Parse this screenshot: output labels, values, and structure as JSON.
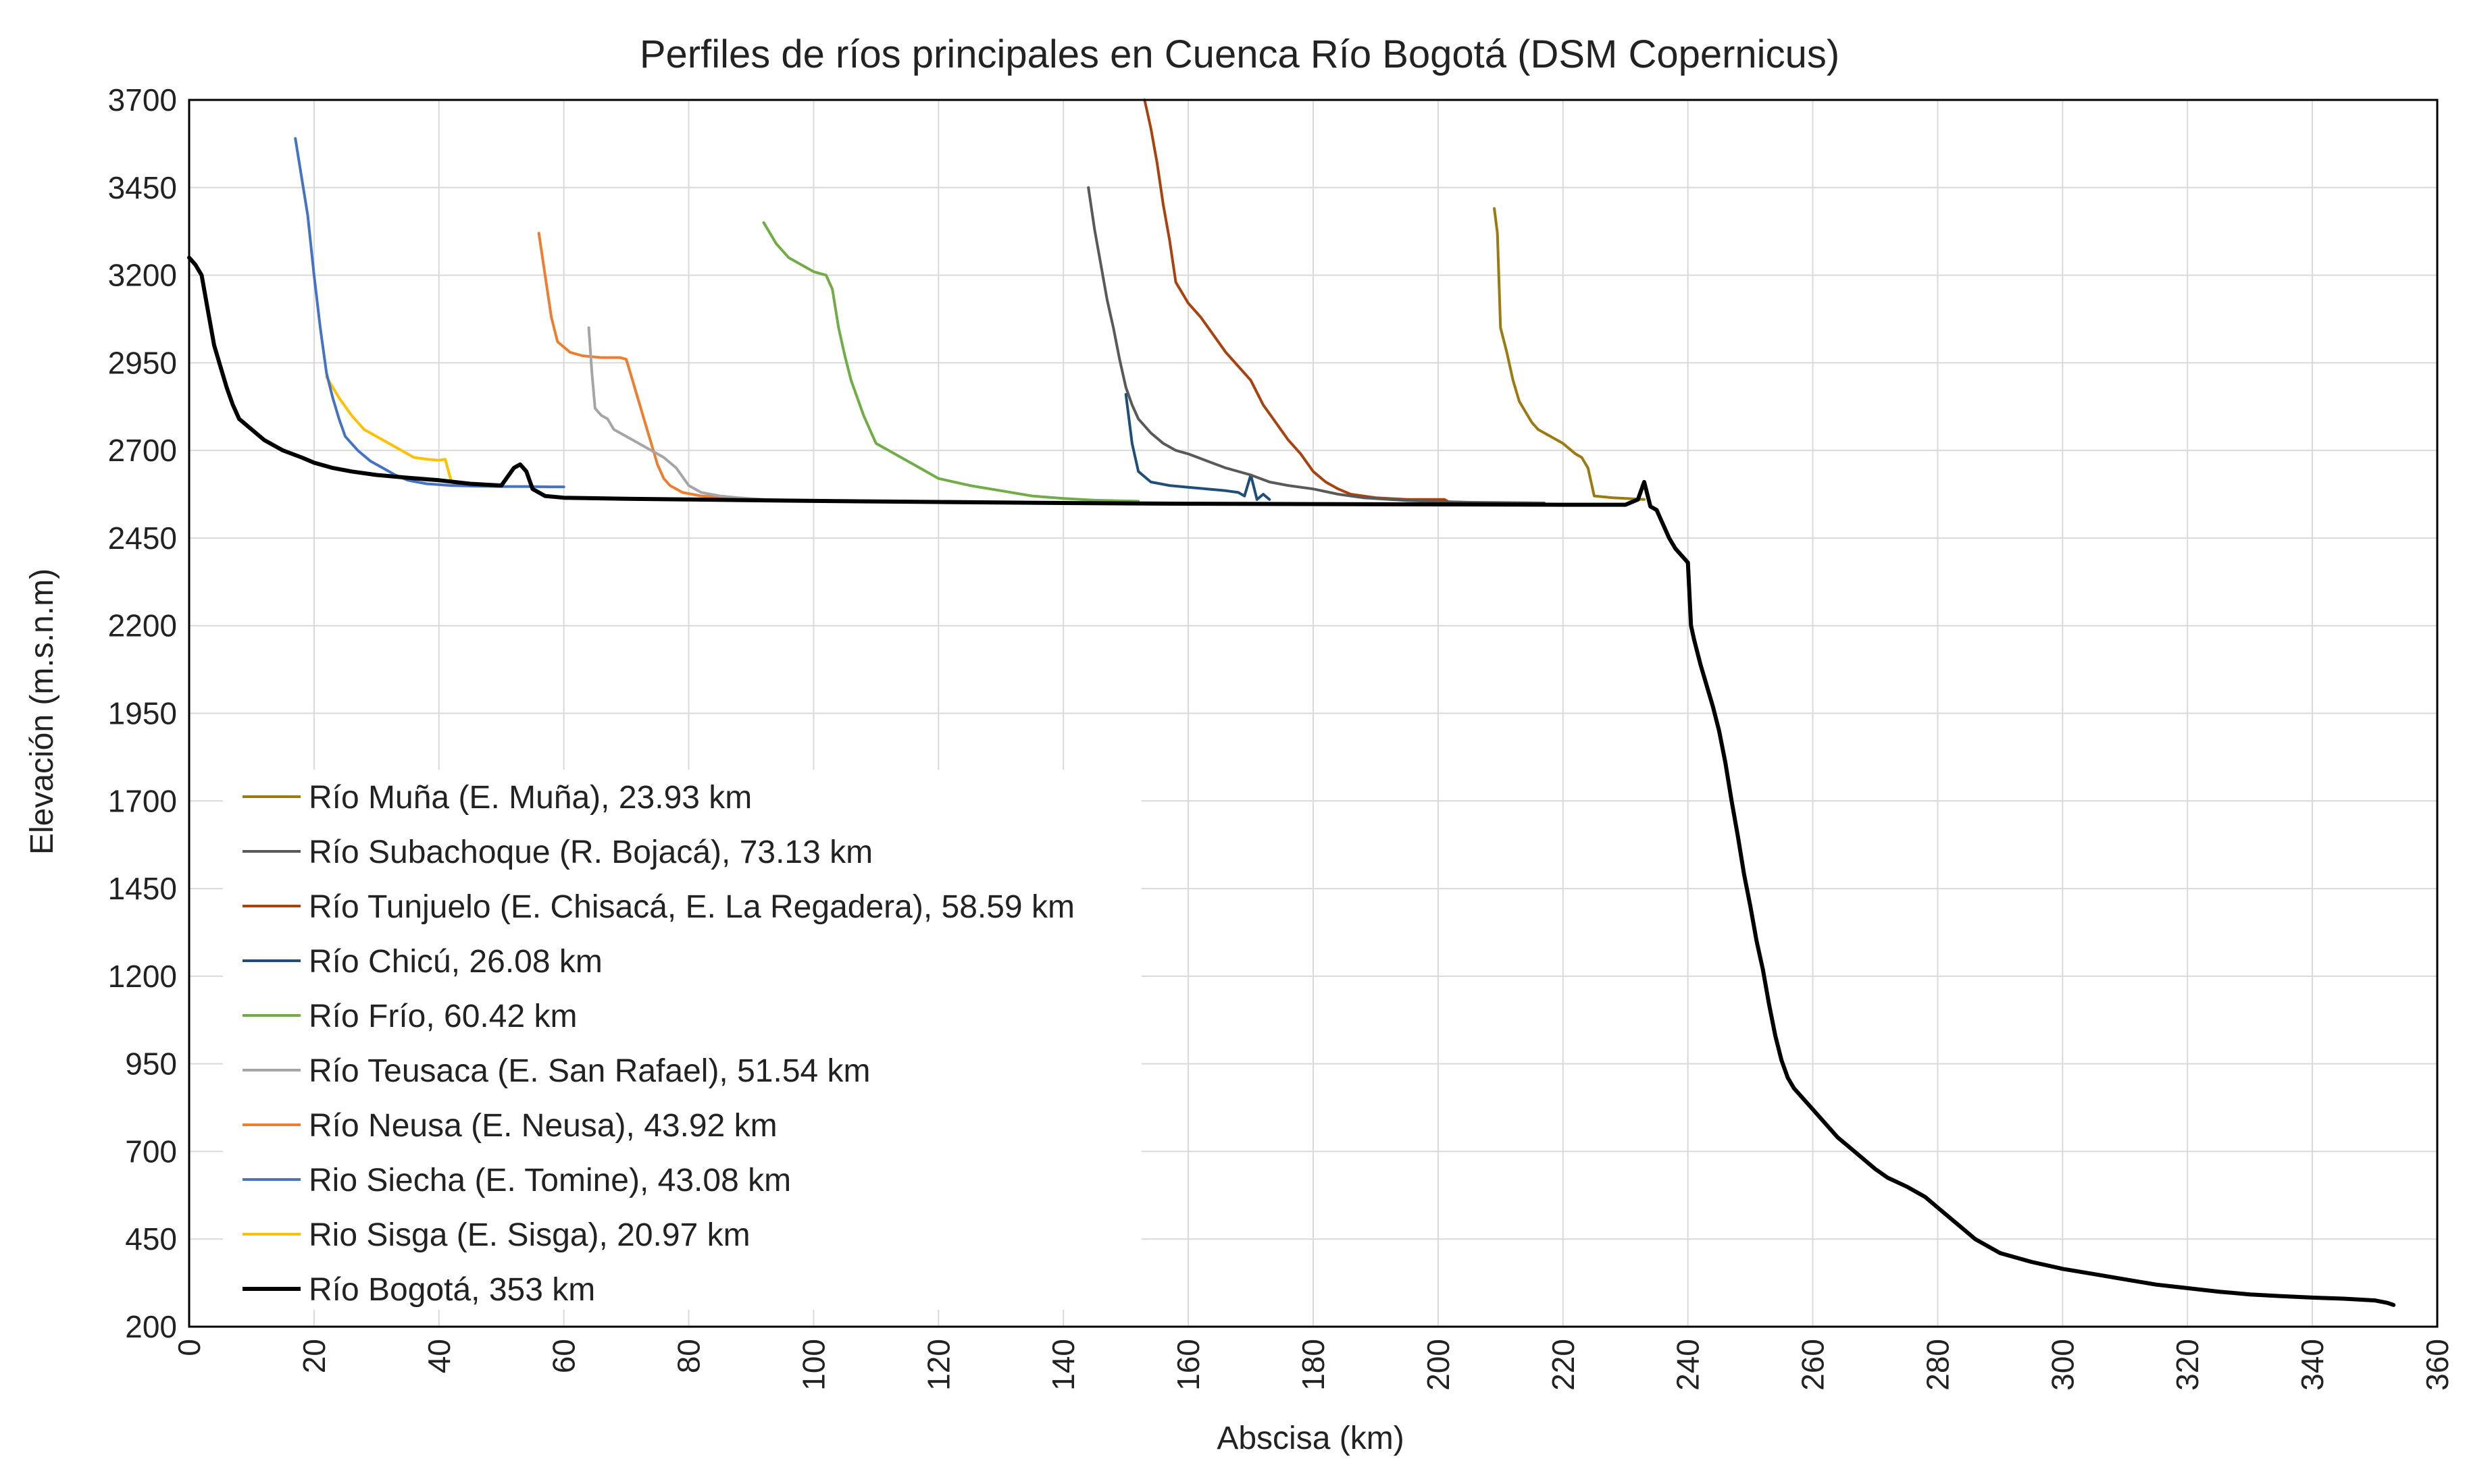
{
  "chart_data": {
    "type": "line",
    "title": "Perfiles de ríos principales en Cuenca Río Bogotá (DSM Copernicus)",
    "xlabel": "Abscisa (km)",
    "ylabel": "Elevación (m.s.n.m)",
    "xlim": [
      0,
      360
    ],
    "ylim": [
      200,
      3700
    ],
    "xticks": [
      0,
      20,
      40,
      60,
      80,
      100,
      120,
      140,
      160,
      180,
      200,
      220,
      240,
      260,
      280,
      300,
      320,
      340,
      360
    ],
    "yticks": [
      200,
      450,
      700,
      950,
      1200,
      1450,
      1700,
      1950,
      2200,
      2450,
      2700,
      2950,
      3200,
      3450,
      3700
    ],
    "grid": true,
    "legend_position": "lower-left",
    "series": [
      {
        "name": "Río Muña (E. Muña), 23.93 km",
        "color": "#9C7A12",
        "points": [
          [
            209,
            3390
          ],
          [
            209.5,
            3320
          ],
          [
            210,
            3050
          ],
          [
            211,
            2980
          ],
          [
            212,
            2900
          ],
          [
            213,
            2840
          ],
          [
            214,
            2810
          ],
          [
            215,
            2780
          ],
          [
            216,
            2760
          ],
          [
            218,
            2740
          ],
          [
            220,
            2720
          ],
          [
            222,
            2690
          ],
          [
            223,
            2680
          ],
          [
            224,
            2650
          ],
          [
            225,
            2570
          ],
          [
            228,
            2565
          ],
          [
            233,
            2560
          ]
        ]
      },
      {
        "name": "Río Subachoque (R. Bojacá), 73.13 km",
        "color": "#595959",
        "points": [
          [
            144,
            3450
          ],
          [
            145,
            3330
          ],
          [
            146,
            3230
          ],
          [
            147,
            3130
          ],
          [
            148,
            3050
          ],
          [
            149,
            2960
          ],
          [
            150,
            2880
          ],
          [
            151,
            2830
          ],
          [
            152,
            2790
          ],
          [
            154,
            2750
          ],
          [
            156,
            2720
          ],
          [
            158,
            2700
          ],
          [
            160,
            2690
          ],
          [
            163,
            2670
          ],
          [
            166,
            2650
          ],
          [
            170,
            2630
          ],
          [
            173,
            2610
          ],
          [
            176,
            2600
          ],
          [
            180,
            2590
          ],
          [
            184,
            2575
          ],
          [
            188,
            2565
          ],
          [
            195,
            2557
          ],
          [
            205,
            2552
          ],
          [
            217,
            2550
          ]
        ]
      },
      {
        "name": "Río Tunjuelo (E. Chisacá, E. La Regadera), 58.59 km",
        "color": "#A8430F",
        "points": [
          [
            153,
            3700
          ],
          [
            154,
            3620
          ],
          [
            155,
            3520
          ],
          [
            156,
            3400
          ],
          [
            157,
            3300
          ],
          [
            158,
            3180
          ],
          [
            160,
            3120
          ],
          [
            162,
            3080
          ],
          [
            164,
            3030
          ],
          [
            166,
            2980
          ],
          [
            168,
            2940
          ],
          [
            170,
            2900
          ],
          [
            172,
            2830
          ],
          [
            174,
            2780
          ],
          [
            176,
            2730
          ],
          [
            178,
            2690
          ],
          [
            180,
            2640
          ],
          [
            182,
            2610
          ],
          [
            184,
            2590
          ],
          [
            186,
            2575
          ],
          [
            190,
            2565
          ],
          [
            195,
            2560
          ],
          [
            201,
            2560
          ],
          [
            202,
            2550
          ]
        ]
      },
      {
        "name": "Río Chicú, 26.08 km",
        "color": "#1F4E79",
        "points": [
          [
            150,
            2860
          ],
          [
            151,
            2720
          ],
          [
            152,
            2640
          ],
          [
            154,
            2610
          ],
          [
            157,
            2600
          ],
          [
            160,
            2595
          ],
          [
            163,
            2590
          ],
          [
            166,
            2585
          ],
          [
            168,
            2580
          ],
          [
            169,
            2570
          ],
          [
            170,
            2630
          ],
          [
            171,
            2560
          ],
          [
            172,
            2575
          ],
          [
            173,
            2560
          ]
        ]
      },
      {
        "name": "Río Frío, 60.42 km",
        "color": "#70AD47",
        "points": [
          [
            92,
            3350
          ],
          [
            94,
            3290
          ],
          [
            96,
            3250
          ],
          [
            98,
            3230
          ],
          [
            100,
            3210
          ],
          [
            102,
            3200
          ],
          [
            103,
            3160
          ],
          [
            104,
            3050
          ],
          [
            105,
            2970
          ],
          [
            106,
            2900
          ],
          [
            107,
            2850
          ],
          [
            108,
            2800
          ],
          [
            109,
            2760
          ],
          [
            110,
            2720
          ],
          [
            112,
            2700
          ],
          [
            114,
            2680
          ],
          [
            116,
            2660
          ],
          [
            118,
            2640
          ],
          [
            120,
            2620
          ],
          [
            125,
            2600
          ],
          [
            130,
            2585
          ],
          [
            135,
            2570
          ],
          [
            140,
            2563
          ],
          [
            145,
            2558
          ],
          [
            152,
            2555
          ]
        ]
      },
      {
        "name": "Río Teusaca (E. San Rafael), 51.54 km",
        "color": "#A5A5A5",
        "points": [
          [
            64,
            3050
          ],
          [
            64.5,
            2920
          ],
          [
            65,
            2820
          ],
          [
            66,
            2800
          ],
          [
            67,
            2790
          ],
          [
            68,
            2760
          ],
          [
            70,
            2740
          ],
          [
            72,
            2720
          ],
          [
            74,
            2700
          ],
          [
            76,
            2680
          ],
          [
            78,
            2650
          ],
          [
            80,
            2600
          ],
          [
            82,
            2580
          ],
          [
            85,
            2570
          ],
          [
            88,
            2565
          ],
          [
            92,
            2560
          ],
          [
            100,
            2557
          ],
          [
            108,
            2555
          ],
          [
            116,
            2553
          ]
        ]
      },
      {
        "name": "Río Neusa (E. Neusa), 43.92 km",
        "color": "#ED7D31",
        "points": [
          [
            56,
            3320
          ],
          [
            57,
            3200
          ],
          [
            58,
            3080
          ],
          [
            59,
            3010
          ],
          [
            61,
            2980
          ],
          [
            63,
            2970
          ],
          [
            66,
            2965
          ],
          [
            69,
            2965
          ],
          [
            70,
            2960
          ],
          [
            71,
            2900
          ],
          [
            72,
            2840
          ],
          [
            73,
            2780
          ],
          [
            74,
            2720
          ],
          [
            75,
            2660
          ],
          [
            76,
            2620
          ],
          [
            77,
            2600
          ],
          [
            79,
            2580
          ],
          [
            82,
            2570
          ],
          [
            86,
            2565
          ],
          [
            90,
            2560
          ],
          [
            95,
            2557
          ],
          [
            100,
            2556
          ]
        ]
      },
      {
        "name": "Rio Siecha (E. Tomine), 43.08 km",
        "color": "#4472C4",
        "points": [
          [
            17,
            3590
          ],
          [
            18,
            3480
          ],
          [
            19,
            3370
          ],
          [
            20,
            3200
          ],
          [
            21,
            3050
          ],
          [
            22,
            2920
          ],
          [
            23,
            2850
          ],
          [
            24,
            2790
          ],
          [
            25,
            2740
          ],
          [
            27,
            2700
          ],
          [
            29,
            2670
          ],
          [
            31,
            2650
          ],
          [
            33,
            2630
          ],
          [
            35,
            2615
          ],
          [
            38,
            2605
          ],
          [
            42,
            2600
          ],
          [
            46,
            2598
          ],
          [
            50,
            2597
          ],
          [
            54,
            2597
          ],
          [
            58,
            2596
          ],
          [
            60,
            2596
          ]
        ]
      },
      {
        "name": "Rio Sisga (E. Sisga), 20.97 km",
        "color": "#FFC000",
        "points": [
          [
            22,
            2910
          ],
          [
            24,
            2850
          ],
          [
            26,
            2800
          ],
          [
            28,
            2760
          ],
          [
            30,
            2740
          ],
          [
            32,
            2720
          ],
          [
            34,
            2700
          ],
          [
            36,
            2680
          ],
          [
            38,
            2675
          ],
          [
            40,
            2672
          ],
          [
            41,
            2675
          ],
          [
            42,
            2610
          ],
          [
            43,
            2600
          ]
        ]
      },
      {
        "name": "Río Bogotá, 353 km",
        "color": "#000000",
        "points": [
          [
            0,
            3250
          ],
          [
            1,
            3230
          ],
          [
            2,
            3200
          ],
          [
            3,
            3100
          ],
          [
            4,
            3000
          ],
          [
            5,
            2940
          ],
          [
            6,
            2880
          ],
          [
            7,
            2830
          ],
          [
            8,
            2790
          ],
          [
            10,
            2760
          ],
          [
            12,
            2730
          ],
          [
            15,
            2700
          ],
          [
            18,
            2680
          ],
          [
            20,
            2665
          ],
          [
            23,
            2650
          ],
          [
            26,
            2640
          ],
          [
            30,
            2630
          ],
          [
            35,
            2622
          ],
          [
            40,
            2615
          ],
          [
            45,
            2605
          ],
          [
            50,
            2600
          ],
          [
            52,
            2650
          ],
          [
            53,
            2660
          ],
          [
            54,
            2640
          ],
          [
            55,
            2590
          ],
          [
            57,
            2570
          ],
          [
            60,
            2565
          ],
          [
            70,
            2562
          ],
          [
            80,
            2560
          ],
          [
            90,
            2558
          ],
          [
            100,
            2556
          ],
          [
            120,
            2553
          ],
          [
            140,
            2550
          ],
          [
            160,
            2548
          ],
          [
            180,
            2547
          ],
          [
            200,
            2546
          ],
          [
            220,
            2545
          ],
          [
            230,
            2545
          ],
          [
            232,
            2560
          ],
          [
            233,
            2610
          ],
          [
            234,
            2540
          ],
          [
            235,
            2530
          ],
          [
            236,
            2490
          ],
          [
            237,
            2450
          ],
          [
            238,
            2420
          ],
          [
            239,
            2400
          ],
          [
            240,
            2380
          ],
          [
            240.5,
            2200
          ],
          [
            241,
            2160
          ],
          [
            242,
            2090
          ],
          [
            243,
            2030
          ],
          [
            244,
            1970
          ],
          [
            245,
            1900
          ],
          [
            246,
            1810
          ],
          [
            247,
            1700
          ],
          [
            248,
            1600
          ],
          [
            249,
            1490
          ],
          [
            250,
            1400
          ],
          [
            251,
            1300
          ],
          [
            252,
            1220
          ],
          [
            253,
            1120
          ],
          [
            254,
            1030
          ],
          [
            255,
            960
          ],
          [
            256,
            910
          ],
          [
            257,
            880
          ],
          [
            258,
            860
          ],
          [
            260,
            820
          ],
          [
            262,
            780
          ],
          [
            264,
            740
          ],
          [
            266,
            710
          ],
          [
            268,
            680
          ],
          [
            270,
            650
          ],
          [
            272,
            625
          ],
          [
            275,
            600
          ],
          [
            278,
            570
          ],
          [
            280,
            540
          ],
          [
            282,
            510
          ],
          [
            284,
            480
          ],
          [
            286,
            450
          ],
          [
            288,
            430
          ],
          [
            290,
            410
          ],
          [
            295,
            385
          ],
          [
            300,
            365
          ],
          [
            305,
            350
          ],
          [
            310,
            335
          ],
          [
            315,
            320
          ],
          [
            320,
            310
          ],
          [
            325,
            300
          ],
          [
            330,
            292
          ],
          [
            335,
            287
          ],
          [
            340,
            283
          ],
          [
            345,
            280
          ],
          [
            350,
            275
          ],
          [
            352,
            268
          ],
          [
            353,
            262
          ]
        ]
      }
    ]
  }
}
